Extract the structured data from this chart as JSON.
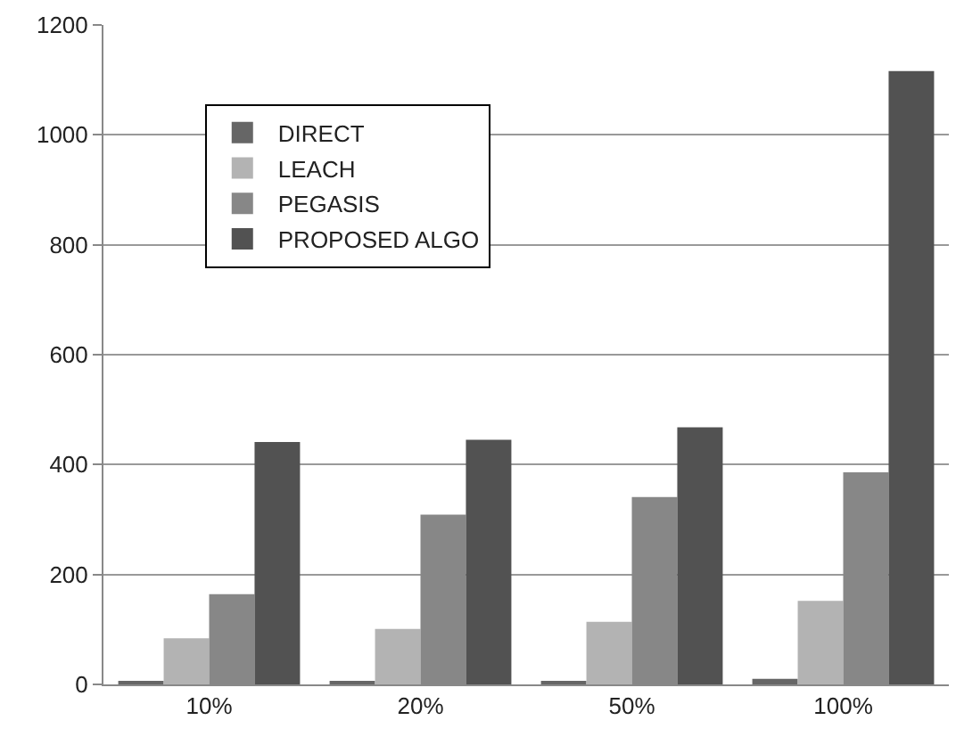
{
  "chart_data": {
    "type": "bar",
    "categories": [
      "10%",
      "20%",
      "50%",
      "100%"
    ],
    "series": [
      {
        "name": "DIRECT",
        "color": "#666666",
        "values": [
          5,
          5,
          5,
          10
        ]
      },
      {
        "name": "LEACH",
        "color": "#b3b3b3",
        "values": [
          84,
          101,
          114,
          152
        ]
      },
      {
        "name": "PEGASIS",
        "color": "#878787",
        "values": [
          164,
          309,
          341,
          386
        ]
      },
      {
        "name": "PROPOSED ALGO",
        "color": "#525252",
        "values": [
          441,
          445,
          468,
          1116
        ]
      }
    ],
    "ylim": [
      0,
      1200
    ],
    "yticks": [
      0,
      200,
      400,
      600,
      800,
      1000,
      1200
    ],
    "grid": "y",
    "legend": "top left"
  }
}
